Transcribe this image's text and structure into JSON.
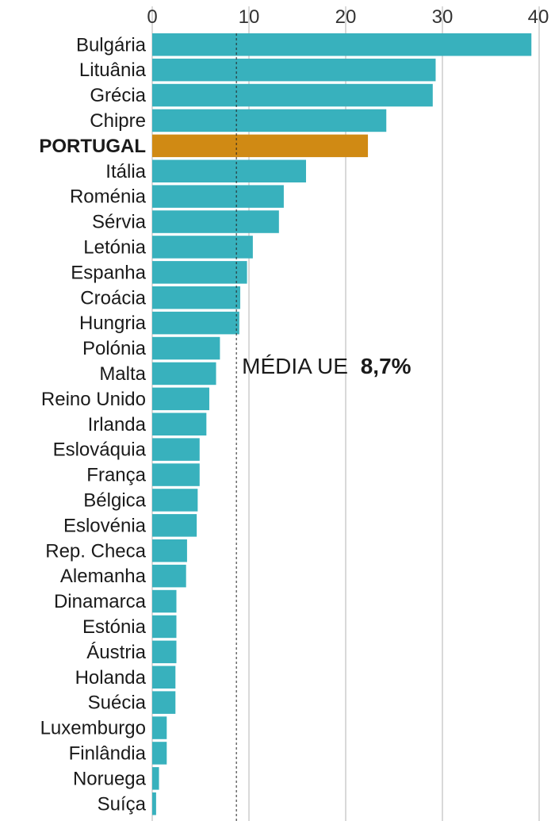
{
  "chart_data": {
    "type": "bar",
    "orientation": "horizontal",
    "categories": [
      "Bulgária",
      "Lituânia",
      "Grécia",
      "Chipre",
      "PORTUGAL",
      "Itália",
      "Roménia",
      "Sérvia",
      "Letónia",
      "Espanha",
      "Croácia",
      "Hungria",
      "Polónia",
      "Malta",
      "Reino Unido",
      "Irlanda",
      "Eslováquia",
      "França",
      "Bélgica",
      "Eslovénia",
      "Rep. Checa",
      "Alemanha",
      "Dinamarca",
      "Estónia",
      "Áustria",
      "Holanda",
      "Suécia",
      "Luxemburgo",
      "Finlândia",
      "Noruega",
      "Suíça"
    ],
    "values": [
      39.2,
      29.3,
      29.0,
      24.2,
      22.3,
      15.9,
      13.6,
      13.1,
      10.4,
      9.8,
      9.1,
      9.0,
      7.0,
      6.6,
      5.9,
      5.6,
      4.9,
      4.9,
      4.7,
      4.6,
      3.6,
      3.5,
      2.5,
      2.5,
      2.5,
      2.4,
      2.4,
      1.5,
      1.5,
      0.7,
      0.4
    ],
    "highlight": "PORTUGAL",
    "xlim": [
      0,
      40
    ],
    "xticks": [
      0,
      10,
      20,
      30,
      40
    ],
    "grid": true,
    "average": {
      "label": "MÉDIA UE",
      "value_text": "8,7%",
      "value": 8.7
    },
    "colors": {
      "bar": "#38b1bd",
      "highlight": "#d08a14",
      "grid": "#b3b3b3",
      "reference_line": "#222222"
    }
  }
}
